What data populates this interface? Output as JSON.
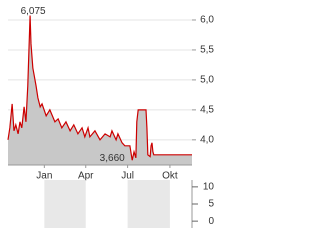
{
  "chart_data": [
    {
      "type": "line",
      "x": [
        0,
        4,
        9,
        13,
        17,
        22,
        26,
        30,
        35,
        39,
        43,
        48,
        50,
        54,
        61,
        65,
        70,
        74,
        83,
        91,
        102,
        109,
        117,
        126,
        135,
        143,
        152,
        161,
        167,
        174,
        178,
        189,
        200,
        211,
        222,
        226,
        235,
        239,
        248,
        254,
        265,
        270,
        274,
        278,
        280,
        283,
        291,
        300,
        302,
        304,
        309,
        311,
        313,
        315,
        317,
        330,
        352,
        374,
        400
      ],
      "series": [
        {
          "color": "#cc0000",
          "values": [
            4.0,
            4.2,
            4.6,
            4.15,
            4.25,
            4.1,
            4.3,
            4.2,
            4.55,
            4.3,
            4.9,
            6.075,
            5.6,
            5.2,
            4.9,
            4.7,
            4.55,
            4.6,
            4.4,
            4.5,
            4.3,
            4.35,
            4.2,
            4.3,
            4.15,
            4.25,
            4.1,
            4.2,
            4.05,
            4.2,
            4.05,
            4.15,
            4.0,
            4.1,
            4.05,
            4.15,
            4.0,
            4.1,
            3.95,
            3.9,
            3.9,
            3.66,
            3.8,
            3.7,
            4.3,
            4.5,
            4.5,
            4.5,
            4.2,
            3.75,
            3.72,
            3.9,
            3.95,
            3.8,
            3.75,
            3.75,
            3.75,
            3.75,
            3.75
          ]
        }
      ],
      "area_color": "#c8c8c8",
      "xlim": [
        0,
        400
      ],
      "xticks": [
        {
          "value": 79,
          "label": "Jan"
        },
        {
          "value": 169,
          "label": "Apr"
        },
        {
          "value": 260,
          "label": "Jul"
        },
        {
          "value": 352,
          "label": "Okt"
        }
      ],
      "ylim": [
        3.58,
        6.25
      ],
      "yticks": [
        {
          "value": 4.0,
          "label": "4,0"
        },
        {
          "value": 4.5,
          "label": "4,5"
        },
        {
          "value": 5.0,
          "label": "5,0"
        },
        {
          "value": 5.5,
          "label": "5,5"
        },
        {
          "value": 6.0,
          "label": "6,0"
        }
      ],
      "annotations": [
        {
          "label": "6,075",
          "value": 6.075
        },
        {
          "label": "3,660",
          "value": 3.66
        }
      ]
    },
    {
      "type": "bar",
      "band_color": "#e8e8e8",
      "ylim": [
        -2,
        12
      ],
      "yticks": [
        10,
        5,
        0
      ]
    }
  ]
}
